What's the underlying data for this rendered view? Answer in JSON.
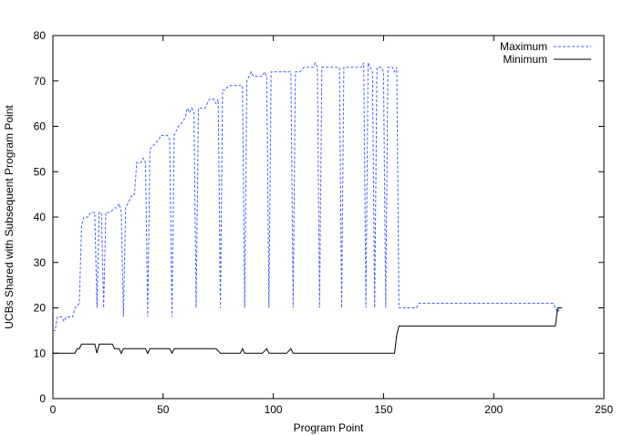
{
  "chart_data": {
    "type": "line",
    "title": "",
    "xlabel": "Program Point",
    "ylabel": "UCBs Shared with Subsequent Program Point",
    "xlim": [
      0,
      250
    ],
    "ylim": [
      0,
      80
    ],
    "xticks": [
      0,
      50,
      100,
      150,
      200,
      250
    ],
    "yticks": [
      0,
      10,
      20,
      30,
      40,
      50,
      60,
      70,
      80
    ],
    "grid": false,
    "legend_position": "top-right",
    "series": [
      {
        "name": "Maximum",
        "color": "#4a5cff",
        "style": "dashed",
        "points": [
          [
            0,
            15
          ],
          [
            1,
            15
          ],
          [
            2,
            18
          ],
          [
            4,
            18
          ],
          [
            5,
            17
          ],
          [
            6,
            18
          ],
          [
            8,
            18
          ],
          [
            9,
            18
          ],
          [
            10,
            20
          ],
          [
            12,
            21
          ],
          [
            13,
            38
          ],
          [
            14,
            40
          ],
          [
            16,
            40
          ],
          [
            17,
            41
          ],
          [
            19,
            41
          ],
          [
            20,
            20
          ],
          [
            21,
            41
          ],
          [
            22,
            41
          ],
          [
            23,
            20
          ],
          [
            24,
            41
          ],
          [
            26,
            41
          ],
          [
            28,
            42
          ],
          [
            29,
            42
          ],
          [
            30,
            43
          ],
          [
            31,
            41
          ],
          [
            32,
            18
          ],
          [
            33,
            42
          ],
          [
            34,
            43
          ],
          [
            36,
            45
          ],
          [
            37,
            45
          ],
          [
            38,
            52
          ],
          [
            40,
            52
          ],
          [
            41,
            53
          ],
          [
            42,
            52
          ],
          [
            43,
            18
          ],
          [
            44,
            55
          ],
          [
            46,
            56
          ],
          [
            48,
            57
          ],
          [
            49,
            58
          ],
          [
            52,
            58
          ],
          [
            53,
            57
          ],
          [
            54,
            18
          ],
          [
            55,
            58
          ],
          [
            56,
            59
          ],
          [
            57,
            60
          ],
          [
            59,
            61
          ],
          [
            60,
            62
          ],
          [
            61,
            64
          ],
          [
            62,
            63
          ],
          [
            63,
            64
          ],
          [
            64,
            63
          ],
          [
            65,
            20
          ],
          [
            66,
            64
          ],
          [
            68,
            64
          ],
          [
            69,
            64
          ],
          [
            70,
            65
          ],
          [
            71,
            66
          ],
          [
            73,
            66
          ],
          [
            74,
            65
          ],
          [
            75,
            66
          ],
          [
            76,
            20
          ],
          [
            77,
            68
          ],
          [
            78,
            68
          ],
          [
            80,
            69
          ],
          [
            82,
            69
          ],
          [
            84,
            69
          ],
          [
            86,
            69
          ],
          [
            87,
            20
          ],
          [
            88,
            70
          ],
          [
            89,
            71
          ],
          [
            90,
            72
          ],
          [
            91,
            71
          ],
          [
            93,
            71
          ],
          [
            95,
            71
          ],
          [
            96,
            72
          ],
          [
            97,
            71
          ],
          [
            98,
            20
          ],
          [
            99,
            72
          ],
          [
            100,
            72
          ],
          [
            103,
            72
          ],
          [
            106,
            72
          ],
          [
            108,
            72
          ],
          [
            109,
            20
          ],
          [
            110,
            72
          ],
          [
            112,
            72
          ],
          [
            114,
            73
          ],
          [
            116,
            73
          ],
          [
            118,
            73
          ],
          [
            119,
            74
          ],
          [
            120,
            73
          ],
          [
            121,
            20
          ],
          [
            122,
            73
          ],
          [
            124,
            73
          ],
          [
            127,
            73
          ],
          [
            130,
            73
          ],
          [
            131,
            20
          ],
          [
            132,
            73
          ],
          [
            134,
            73
          ],
          [
            137,
            73
          ],
          [
            140,
            73
          ],
          [
            141,
            74
          ],
          [
            142,
            20
          ],
          [
            143,
            74
          ],
          [
            144,
            73
          ],
          [
            145,
            72
          ],
          [
            146,
            20
          ],
          [
            147,
            73
          ],
          [
            149,
            73
          ],
          [
            150,
            72
          ],
          [
            151,
            20
          ],
          [
            152,
            73
          ],
          [
            154,
            73
          ],
          [
            155,
            72
          ],
          [
            156,
            73
          ],
          [
            157,
            20
          ],
          [
            160,
            20
          ],
          [
            163,
            20
          ],
          [
            165,
            20
          ],
          [
            166,
            21
          ],
          [
            168,
            21
          ],
          [
            175,
            21
          ],
          [
            185,
            21
          ],
          [
            195,
            21
          ],
          [
            205,
            21
          ],
          [
            215,
            21
          ],
          [
            225,
            21
          ],
          [
            227,
            21
          ],
          [
            228,
            20
          ],
          [
            229,
            19
          ],
          [
            230,
            20
          ],
          [
            231,
            20
          ]
        ]
      },
      {
        "name": "Minimum",
        "color": "#000000",
        "style": "solid",
        "points": [
          [
            0,
            10
          ],
          [
            2,
            10
          ],
          [
            4,
            10
          ],
          [
            6,
            10
          ],
          [
            8,
            10
          ],
          [
            10,
            10
          ],
          [
            11,
            11
          ],
          [
            12,
            11
          ],
          [
            13,
            12
          ],
          [
            15,
            12
          ],
          [
            17,
            12
          ],
          [
            19,
            12
          ],
          [
            20,
            10
          ],
          [
            21,
            12
          ],
          [
            23,
            12
          ],
          [
            25,
            12
          ],
          [
            27,
            12
          ],
          [
            28,
            11
          ],
          [
            29,
            11
          ],
          [
            30,
            11
          ],
          [
            31,
            10
          ],
          [
            32,
            11
          ],
          [
            34,
            11
          ],
          [
            36,
            11
          ],
          [
            38,
            11
          ],
          [
            40,
            11
          ],
          [
            42,
            11
          ],
          [
            43,
            10
          ],
          [
            44,
            11
          ],
          [
            46,
            11
          ],
          [
            48,
            11
          ],
          [
            50,
            11
          ],
          [
            53,
            11
          ],
          [
            54,
            10
          ],
          [
            55,
            11
          ],
          [
            58,
            11
          ],
          [
            62,
            11
          ],
          [
            66,
            11
          ],
          [
            70,
            11
          ],
          [
            74,
            11
          ],
          [
            76,
            10
          ],
          [
            78,
            10
          ],
          [
            82,
            10
          ],
          [
            85,
            10
          ],
          [
            86,
            11
          ],
          [
            87,
            10
          ],
          [
            90,
            10
          ],
          [
            95,
            10
          ],
          [
            97,
            11
          ],
          [
            98,
            10
          ],
          [
            102,
            10
          ],
          [
            106,
            10
          ],
          [
            108,
            11
          ],
          [
            109,
            10
          ],
          [
            115,
            10
          ],
          [
            120,
            10
          ],
          [
            125,
            10
          ],
          [
            130,
            10
          ],
          [
            135,
            10
          ],
          [
            140,
            10
          ],
          [
            145,
            10
          ],
          [
            150,
            10
          ],
          [
            155,
            10
          ],
          [
            156,
            14
          ],
          [
            157,
            16
          ],
          [
            165,
            16
          ],
          [
            180,
            16
          ],
          [
            200,
            16
          ],
          [
            220,
            16
          ],
          [
            228,
            16
          ],
          [
            229,
            20
          ],
          [
            230,
            20
          ],
          [
            231,
            20
          ]
        ]
      }
    ]
  }
}
